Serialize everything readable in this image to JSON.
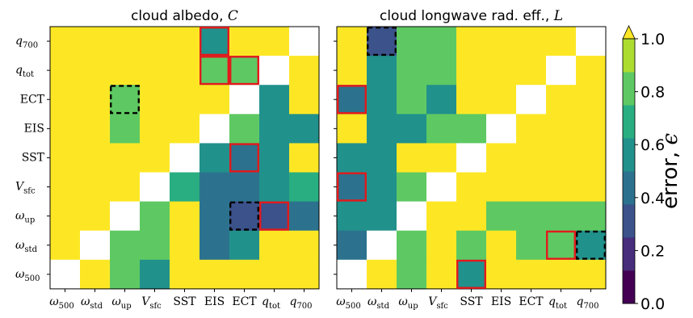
{
  "chart_data": [
    {
      "type": "heatmap",
      "title": "cloud albedo, C",
      "categories": [
        "ω500",
        "ωstd",
        "ωup",
        "Vsfc",
        "SST",
        "EIS",
        "ECT",
        "qtot",
        "q700"
      ],
      "x_tick_labels": [
        {
          "base": "ω",
          "sub": "500"
        },
        {
          "base": "ω",
          "sub": "std"
        },
        {
          "base": "ω",
          "sub": "up"
        },
        {
          "base": "V",
          "sub": "sfc"
        },
        {
          "base": "SST",
          "sub": ""
        },
        {
          "base": "EIS",
          "sub": ""
        },
        {
          "base": "ECT",
          "sub": ""
        },
        {
          "base": "q",
          "sub": "tot"
        },
        {
          "base": "q",
          "sub": "700"
        }
      ],
      "y_tick_labels": [
        {
          "base": "q",
          "sub": "700"
        },
        {
          "base": "q",
          "sub": "tot"
        },
        {
          "base": "ECT",
          "sub": ""
        },
        {
          "base": "EIS",
          "sub": ""
        },
        {
          "base": "SST",
          "sub": ""
        },
        {
          "base": "V",
          "sub": "sfc"
        },
        {
          "base": "ω",
          "sub": "up"
        },
        {
          "base": "ω",
          "sub": "std"
        },
        {
          "base": "ω",
          "sub": "500"
        }
      ],
      "rows_top_to_bottom": [
        "q700",
        "qtot",
        "ECT",
        "EIS",
        "SST",
        "Vsfc",
        "ωup",
        "ωstd",
        "ω500"
      ],
      "values": [
        [
          1.0,
          1.0,
          1.0,
          1.0,
          1.0,
          0.6,
          1.0,
          1.0,
          null
        ],
        [
          1.0,
          1.0,
          1.0,
          1.0,
          1.0,
          0.75,
          0.75,
          null,
          1.0
        ],
        [
          1.0,
          1.0,
          0.85,
          1.0,
          1.0,
          1.0,
          null,
          0.6,
          1.0
        ],
        [
          1.0,
          1.0,
          0.85,
          1.0,
          1.0,
          null,
          0.75,
          0.6,
          0.5
        ],
        [
          1.0,
          1.0,
          1.0,
          1.0,
          null,
          0.55,
          0.4,
          0.6,
          1.0
        ],
        [
          1.0,
          1.0,
          1.0,
          null,
          0.7,
          0.45,
          0.45,
          0.6,
          0.7
        ],
        [
          1.0,
          1.0,
          null,
          0.75,
          1.0,
          0.4,
          0.25,
          0.35,
          0.4
        ],
        [
          1.0,
          null,
          0.85,
          0.75,
          1.0,
          0.45,
          0.6,
          1.0,
          1.0
        ],
        [
          null,
          1.0,
          0.75,
          0.6,
          1.0,
          1.0,
          1.0,
          1.0,
          1.0
        ]
      ],
      "highlights": [
        {
          "row": 0,
          "col": 5,
          "style": "solid"
        },
        {
          "row": 1,
          "col": 5,
          "style": "solid"
        },
        {
          "row": 1,
          "col": 6,
          "style": "solid"
        },
        {
          "row": 2,
          "col": 2,
          "style": "dashed"
        },
        {
          "row": 4,
          "col": 6,
          "style": "solid"
        },
        {
          "row": 6,
          "col": 6,
          "style": "dashed"
        },
        {
          "row": 6,
          "col": 7,
          "style": "solid"
        }
      ]
    },
    {
      "type": "heatmap",
      "title": "cloud longwave rad. eff., L",
      "categories": [
        "ω500",
        "ωstd",
        "ωup",
        "Vsfc",
        "SST",
        "EIS",
        "ECT",
        "qtot",
        "q700"
      ],
      "x_tick_labels": [
        {
          "base": "ω",
          "sub": "500"
        },
        {
          "base": "ω",
          "sub": "std"
        },
        {
          "base": "ω",
          "sub": "up"
        },
        {
          "base": "V",
          "sub": "sfc"
        },
        {
          "base": "SST",
          "sub": ""
        },
        {
          "base": "EIS",
          "sub": ""
        },
        {
          "base": "ECT",
          "sub": ""
        },
        {
          "base": "q",
          "sub": "tot"
        },
        {
          "base": "q",
          "sub": "700"
        }
      ],
      "rows_top_to_bottom": [
        "q700",
        "qtot",
        "ECT",
        "EIS",
        "SST",
        "Vsfc",
        "ωup",
        "ωstd",
        "ω500"
      ],
      "values": [
        [
          1.0,
          0.35,
          0.75,
          0.75,
          1.0,
          1.0,
          1.0,
          1.0,
          null
        ],
        [
          1.0,
          0.5,
          0.85,
          0.75,
          1.0,
          1.0,
          1.0,
          null,
          1.0
        ],
        [
          0.4,
          0.55,
          0.75,
          0.6,
          1.0,
          1.0,
          null,
          1.0,
          1.0
        ],
        [
          1.0,
          0.55,
          0.6,
          0.85,
          0.85,
          null,
          1.0,
          1.0,
          1.0
        ],
        [
          0.55,
          0.5,
          1.0,
          1.0,
          null,
          1.0,
          1.0,
          1.0,
          1.0
        ],
        [
          0.4,
          0.55,
          0.85,
          null,
          1.0,
          1.0,
          1.0,
          1.0,
          1.0
        ],
        [
          0.55,
          0.55,
          null,
          1.0,
          1.0,
          0.75,
          0.85,
          0.85,
          0.75
        ],
        [
          0.45,
          null,
          0.75,
          1.0,
          0.75,
          1.0,
          0.85,
          0.75,
          0.6
        ],
        [
          null,
          1.0,
          0.85,
          1.0,
          0.6,
          1.0,
          1.0,
          1.0,
          1.0
        ]
      ],
      "highlights": [
        {
          "row": 0,
          "col": 1,
          "style": "dashed"
        },
        {
          "row": 2,
          "col": 0,
          "style": "solid"
        },
        {
          "row": 5,
          "col": 0,
          "style": "solid"
        },
        {
          "row": 7,
          "col": 7,
          "style": "solid"
        },
        {
          "row": 7,
          "col": 8,
          "style": "dashed"
        },
        {
          "row": 8,
          "col": 4,
          "style": "solid"
        }
      ]
    }
  ],
  "colorbar": {
    "label": "error, ϵ",
    "ticks": [
      "0.0",
      "0.2",
      "0.4",
      "0.6",
      "0.8",
      "1.0"
    ],
    "tick_values": [
      0.0,
      0.2,
      0.4,
      0.6,
      0.8,
      1.0
    ],
    "range": [
      0.0,
      1.0
    ],
    "levels": 8,
    "extend": "max",
    "colors": [
      "#440154",
      "#472d7b",
      "#3b528b",
      "#2c728e",
      "#21918c",
      "#28ae80",
      "#5ec962",
      "#addc30"
    ],
    "over_color": "#fde725",
    "missing_color": "#ffffff",
    "highlight_color": "#e31a1c",
    "dashed_color": "#000000"
  }
}
